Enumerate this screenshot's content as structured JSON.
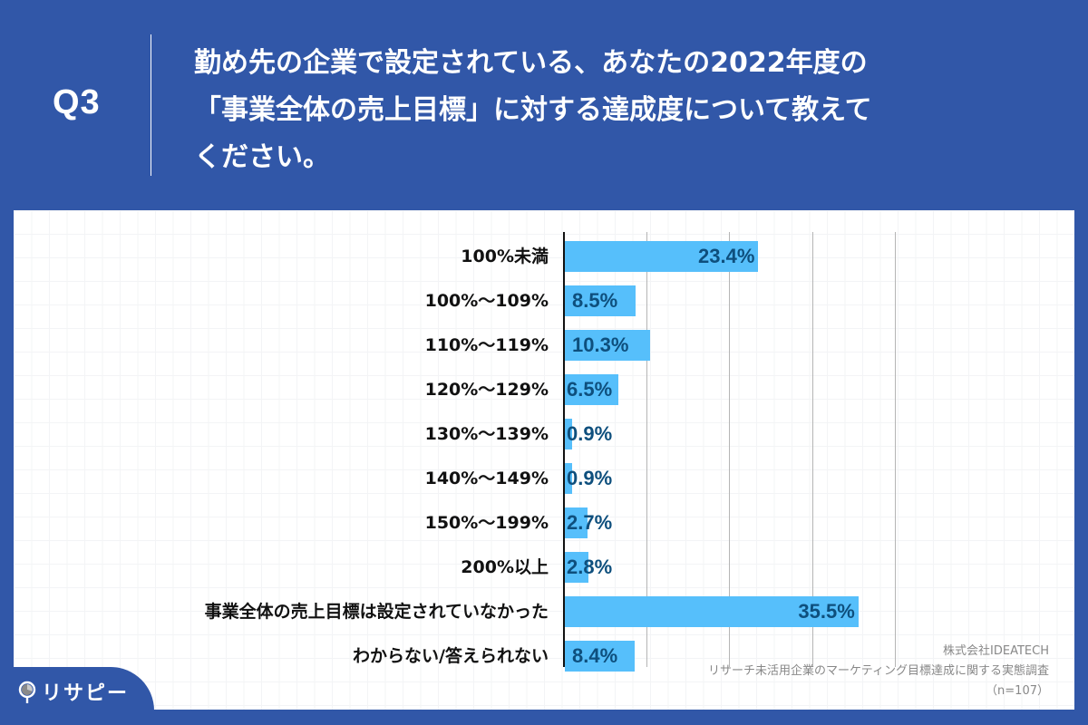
{
  "header": {
    "question_number": "Q3",
    "question_lines": [
      "勤め先の企業で設定されている、あなたの2022年度の",
      "「事業全体の売上目標」に対する達成度について教えて",
      "ください。"
    ]
  },
  "colors": {
    "background": "#3157a8",
    "bar": "#56bffb",
    "value_text": "#0e4f7d",
    "label_text": "#111111",
    "gridline": "#b5b5b5"
  },
  "chart_data": {
    "type": "bar",
    "orientation": "horizontal",
    "title": "勤め先の企業で設定されている、あなたの2022年度の「事業全体の売上目標」に対する達成度について教えてください。",
    "xlabel": "",
    "ylabel": "",
    "xlim": [
      0,
      40
    ],
    "grid": true,
    "gridlines_at": [
      10,
      20,
      30,
      40
    ],
    "unit": "%",
    "categories": [
      "100%未満",
      "100%〜109%",
      "110%〜119%",
      "120%〜129%",
      "130%〜139%",
      "140%〜149%",
      "150%〜199%",
      "200%以上",
      "事業全体の売上目標は設定されていなかった",
      "わからない/答えられない"
    ],
    "values": [
      23.4,
      8.5,
      10.3,
      6.5,
      0.9,
      0.9,
      2.7,
      2.8,
      35.5,
      8.4
    ],
    "value_labels": [
      "23.4%",
      "8.5%",
      "10.3%",
      "6.5%",
      "0.9%",
      "0.9%",
      "2.7%",
      "2.8%",
      "35.5%",
      "8.4%"
    ],
    "legend": null
  },
  "credit": {
    "company": "株式会社IDEATECH",
    "survey": "リサーチ未活用企業のマーケティング目標達成に関する実態調査",
    "sample": "（n=107）"
  },
  "logo": {
    "text": "リサピー",
    "icon": "magnifier-pie-icon"
  }
}
